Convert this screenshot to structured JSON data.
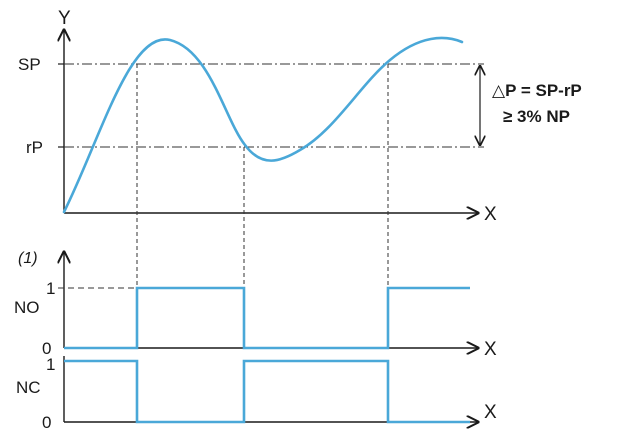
{
  "colors": {
    "signal": "#4aa8d8",
    "ink": "#1a1a1a",
    "guide": "#333333"
  },
  "top_plot": {
    "y_axis_label": "Y",
    "x_axis_label": "X",
    "sp_label": "SP",
    "rp_label": "rP"
  },
  "annotation": {
    "delta_line": "△P = SP-rP",
    "condition_line": "≥ 3% NP"
  },
  "no_plot": {
    "note": "(1)",
    "label": "NO",
    "high_label": "1",
    "low_label": "0",
    "x_axis_label": "X"
  },
  "nc_plot": {
    "label": "NC",
    "high_label": "1",
    "low_label": "0",
    "x_axis_label": "X"
  }
}
